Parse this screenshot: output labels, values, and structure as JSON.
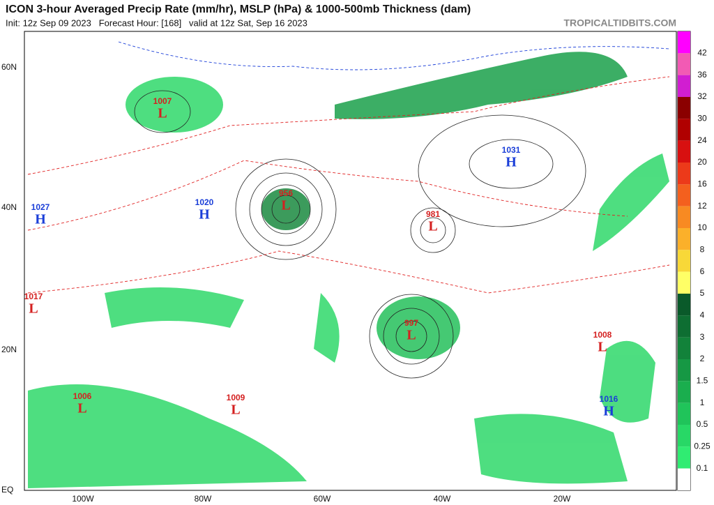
{
  "header": {
    "title": "ICON 3-hour Averaged Precip Rate (mm/hr), MSLP (hPa) & 1000-500mb Thickness (dam)",
    "subtitle": "Init: 12z Sep 09 2023   Forecast Hour: [168]   valid at 12z Sat, Sep 16 2023",
    "credit": "TROPICALTIDBITS.COM"
  },
  "map": {
    "lat_labels": [
      "60N",
      "40N",
      "20N",
      "EQ"
    ],
    "lon_labels": [
      "100W",
      "80W",
      "60W",
      "40W",
      "20W"
    ],
    "centers": [
      {
        "letter": "L",
        "value": "1007"
      },
      {
        "letter": "L",
        "value": "956"
      },
      {
        "letter": "H",
        "value": "1020"
      },
      {
        "letter": "H",
        "value": "1031"
      },
      {
        "letter": "L",
        "value": "981"
      },
      {
        "letter": "L",
        "value": "997"
      },
      {
        "letter": "L",
        "value": "1008"
      },
      {
        "letter": "L",
        "value": "1006"
      },
      {
        "letter": "L",
        "value": "1009"
      },
      {
        "letter": "H",
        "value": "1016"
      },
      {
        "letter": "H",
        "value": "1027"
      },
      {
        "letter": "L",
        "value": "1017"
      }
    ],
    "low_color": "#d42020",
    "high_color": "#1a3ed8"
  },
  "colorbar": {
    "labels": [
      "42",
      "36",
      "32",
      "30",
      "24",
      "20",
      "16",
      "12",
      "10",
      "8",
      "6",
      "5",
      "4",
      "3",
      "2",
      "1.5",
      "1",
      "0.5",
      "0.25",
      "0.1"
    ],
    "colors": [
      "#ff00ff",
      "#f25ab4",
      "#d11ed1",
      "#8b0000",
      "#b00000",
      "#d81010",
      "#ec3a1a",
      "#f4601e",
      "#f88a22",
      "#fbb02a",
      "#f8d838",
      "#ffff66",
      "#0a5a2a",
      "#0e6e32",
      "#12823a",
      "#169844",
      "#1aae4e",
      "#20c45a",
      "#28d866",
      "#30ec72",
      "#ffffff"
    ]
  }
}
